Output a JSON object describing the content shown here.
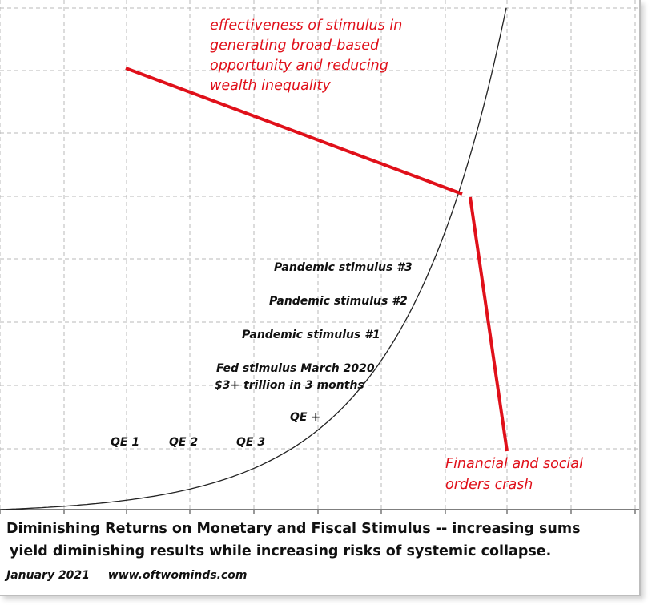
{
  "chart_data": {
    "type": "line",
    "title": "",
    "xlabel": "",
    "ylabel": "",
    "grid": true,
    "series": [
      {
        "description_role": "exponential curve",
        "x": [
          0,
          1,
          2,
          3,
          4,
          5,
          6,
          7,
          8,
          9,
          10
        ],
        "y": [
          0.2,
          0.4,
          0.8,
          1.6,
          3.2,
          6.4,
          12.8,
          25.6,
          51.2,
          102.4,
          204.8
        ]
      }
    ],
    "annotations": [
      {
        "id": "qe1",
        "text": "QE 1"
      },
      {
        "id": "qe2",
        "text": "QE 2"
      },
      {
        "id": "qe3",
        "text": "QE 3"
      },
      {
        "id": "qeplus",
        "text": "QE +"
      },
      {
        "id": "fed1",
        "text": "Fed stimulus March 2020"
      },
      {
        "id": "fed2",
        "text": "$3+ trillion in 3  months"
      },
      {
        "id": "p1",
        "text": "Pandemic stimulus #1"
      },
      {
        "id": "p2",
        "text": "Pandemic stimulus #2"
      },
      {
        "id": "p3",
        "text": "Pandemic stimulus #3"
      },
      {
        "id": "eff1",
        "text": "effectiveness of stimulus in"
      },
      {
        "id": "eff2",
        "text": "generating broad-based"
      },
      {
        "id": "eff3",
        "text": "opportunity and reducing"
      },
      {
        "id": "eff4",
        "text": "wealth inequality"
      },
      {
        "id": "crash1",
        "text": "Financial and social"
      },
      {
        "id": "crash2",
        "text": "orders crash"
      }
    ]
  },
  "caption": {
    "line1": "Diminishing Returns on Monetary and Fiscal Stimulus -- increasing sums",
    "line2": "yield diminishing results while increasing risks of systemic collapse.",
    "date": "January 2021",
    "site": "www.oftwominds.com"
  },
  "colors": {
    "accent": "#e0101a",
    "grid": "#b8b8b8",
    "curve": "#222222"
  }
}
